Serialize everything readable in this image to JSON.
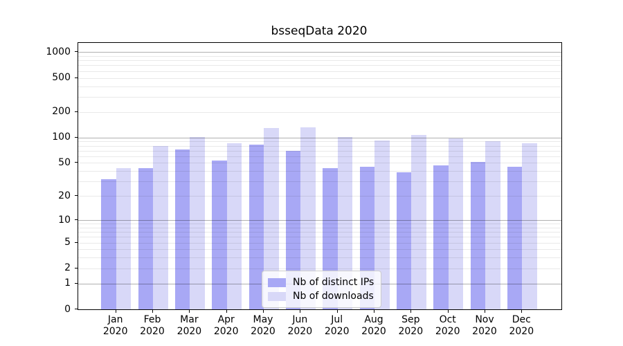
{
  "title": "bsseqData 2020",
  "chart_data": {
    "type": "bar",
    "title": "bsseqData 2020",
    "categories": [
      "Jan 2020",
      "Feb 2020",
      "Mar 2020",
      "Apr 2020",
      "May 2020",
      "Jun 2020",
      "Jul 2020",
      "Aug 2020",
      "Sep 2020",
      "Oct 2020",
      "Nov 2020",
      "Dec 2020"
    ],
    "series": [
      {
        "name": "Nb of distinct IPs",
        "color": "#a8a8f5",
        "values": [
          32,
          43,
          72,
          53,
          82,
          70,
          43,
          45,
          39,
          47,
          51,
          45
        ]
      },
      {
        "name": "Nb of downloads",
        "color": "#d8d8f8",
        "values": [
          43,
          80,
          102,
          86,
          130,
          131,
          102,
          93,
          108,
          98,
          91,
          85
        ]
      }
    ],
    "xlabel": "",
    "ylabel": "",
    "yscale": "log1p",
    "yticks": [
      0,
      1,
      2,
      5,
      10,
      20,
      50,
      100,
      200,
      500,
      1000
    ],
    "ylim": [
      0,
      1280
    ],
    "grid": "horizontal major and minor log gridlines drawn over bars",
    "legend_position": "inside lower-center",
    "legend": [
      {
        "label": "Nb of distinct IPs",
        "color": "#a8a8f5"
      },
      {
        "label": "Nb of downloads",
        "color": "#d8d8f8"
      }
    ],
    "grid_major_color": "#b0b0b0",
    "grid_minor_color": "#eaeaea",
    "frame_color": "#000000"
  }
}
